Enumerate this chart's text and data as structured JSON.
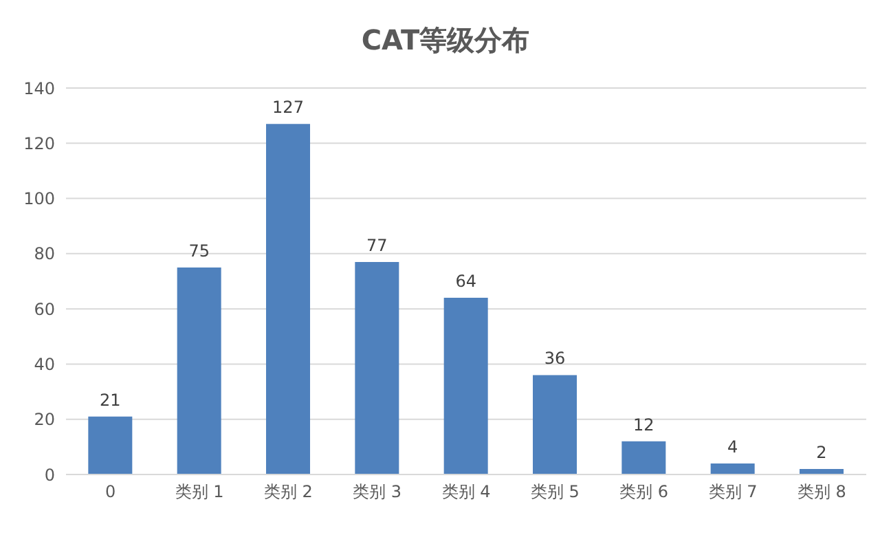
{
  "chart_data": {
    "type": "bar",
    "title": "CAT等级分布",
    "categories": [
      "0",
      "类别 1",
      "类别 2",
      "类别 3",
      "类别 4",
      "类别 5",
      "类别 6",
      "类别 7",
      "类别 8"
    ],
    "values": [
      21,
      75,
      127,
      77,
      64,
      36,
      12,
      4,
      2
    ],
    "color": "#4f81bd",
    "ylim": [
      0,
      140
    ],
    "yticks": [
      0,
      20,
      40,
      60,
      80,
      100,
      120,
      140
    ],
    "grid": "y",
    "data_labels": true
  }
}
